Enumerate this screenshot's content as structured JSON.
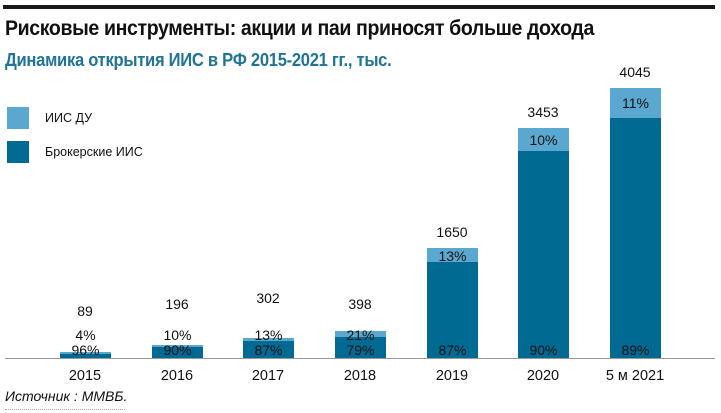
{
  "header": {
    "title": "Рисковые инструменты: акции и паи приносят больше дохода",
    "subtitle": "Динамика открытия ИИС в РФ 2015-2021 гг., тыс."
  },
  "legend": [
    {
      "label": "ИИС ДУ",
      "color": "#5aa8cf"
    },
    {
      "label": "Брокерские ИИС",
      "color": "#006a93"
    }
  ],
  "footer": {
    "source": "Источник : ММВБ."
  },
  "bars": [
    {
      "category": "2015",
      "total": "89",
      "du_pct": "4%",
      "br_pct": "96%"
    },
    {
      "category": "2016",
      "total": "196",
      "du_pct": "10%",
      "br_pct": "90%"
    },
    {
      "category": "2017",
      "total": "302",
      "du_pct": "13%",
      "br_pct": "87%"
    },
    {
      "category": "2018",
      "total": "398",
      "du_pct": "21%",
      "br_pct": "79%"
    },
    {
      "category": "2019",
      "total": "1650",
      "du_pct": "13%",
      "br_pct": "87%"
    },
    {
      "category": "2020",
      "total": "3453",
      "du_pct": "10%",
      "br_pct": "90%"
    },
    {
      "category": "5 м 2021",
      "total": "4045",
      "du_pct": "11%",
      "br_pct": "89%"
    }
  ],
  "chart_data": {
    "type": "bar",
    "stacked": true,
    "title": "Рисковые инструменты: акции и паи приносят больше дохода",
    "subtitle": "Динамика открытия ИИС в РФ 2015-2021 гг., тыс.",
    "xlabel": "",
    "ylabel": "",
    "categories": [
      "2015",
      "2016",
      "2017",
      "2018",
      "2019",
      "2020",
      "5 м 2021"
    ],
    "totals": [
      89,
      196,
      302,
      398,
      1650,
      3453,
      4045
    ],
    "series": [
      {
        "name": "Брокерские ИИС",
        "color": "#006a93",
        "percent": [
          96,
          90,
          87,
          79,
          87,
          90,
          89
        ]
      },
      {
        "name": "ИИС ДУ",
        "color": "#5aa8cf",
        "percent": [
          4,
          10,
          13,
          21,
          13,
          10,
          11
        ]
      }
    ],
    "legend_position": "top-left",
    "grid": false,
    "source": "Источник : ММВБ."
  }
}
